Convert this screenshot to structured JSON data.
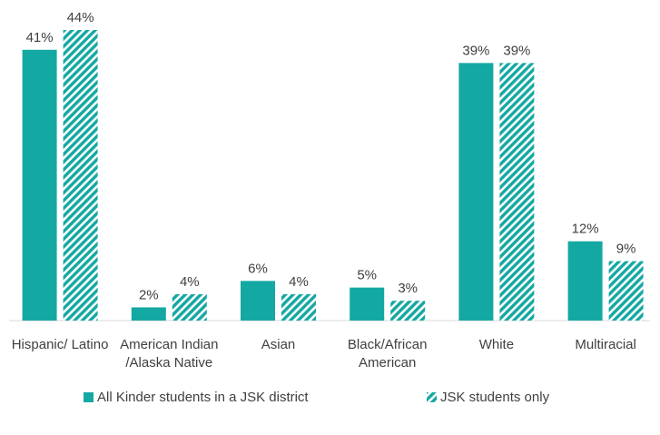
{
  "chart_data": {
    "type": "bar",
    "categories": [
      "Hispanic/ Latino",
      "American Indian /Alaska Native",
      "Asian",
      "Black/African American",
      "White",
      "Multiracial"
    ],
    "series": [
      {
        "name": "All Kinder students in a JSK district",
        "color": "#14a8a3",
        "hatch": false,
        "values": [
          41,
          2,
          6,
          5,
          39,
          12
        ],
        "value_labels": [
          "41%",
          "2%",
          "6%",
          "5%",
          "39%",
          "12%"
        ]
      },
      {
        "name": "JSK students only",
        "color": "#14a8a3",
        "hatch": true,
        "values": [
          44,
          4,
          4,
          3,
          39,
          9
        ],
        "value_labels": [
          "44%",
          "4%",
          "4%",
          "3%",
          "39%",
          "9%"
        ]
      }
    ],
    "legend": "bottom"
  }
}
